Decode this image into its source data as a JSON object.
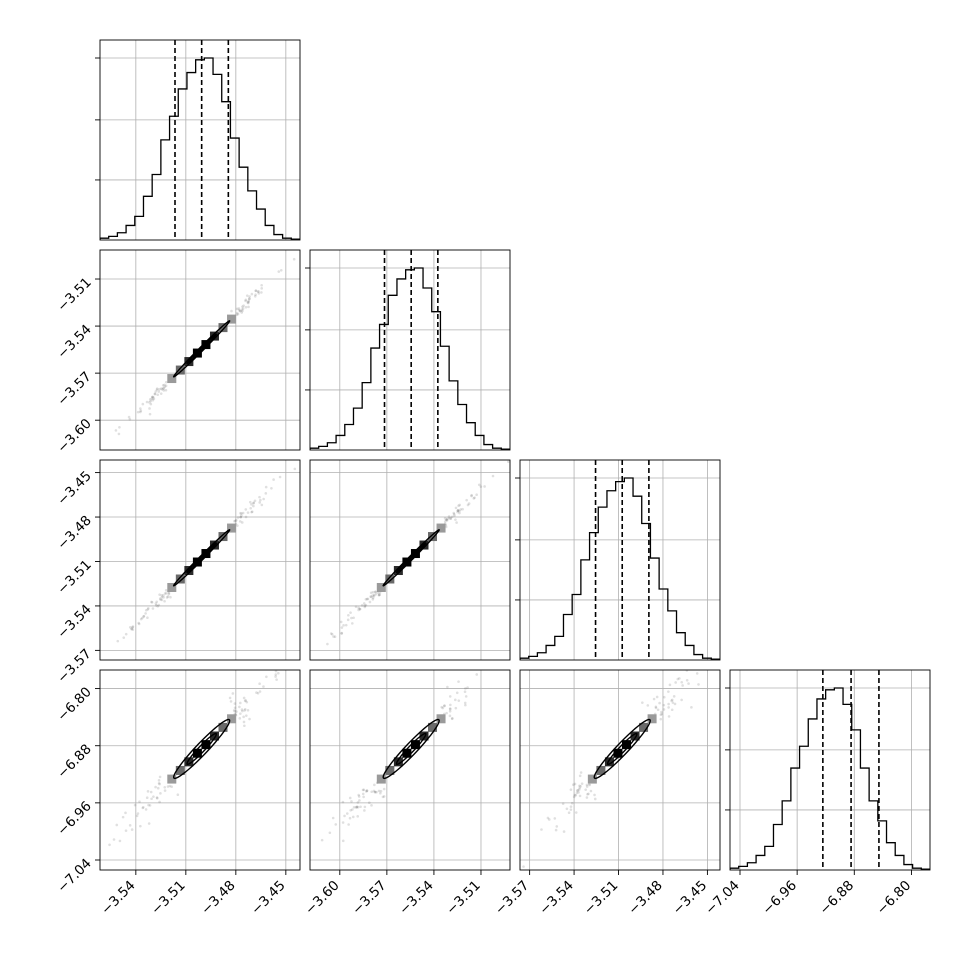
{
  "chart_data": {
    "type": "corner",
    "grid": true,
    "parameters": [
      {
        "range": [
          -3.5615,
          -3.4415
        ],
        "ticks": [
          -3.54,
          -3.51,
          -3.48,
          -3.45
        ],
        "tick_labels": [
          "−3.54",
          "−3.51",
          "−3.48",
          "−3.45"
        ],
        "quantiles": [
          -3.5165,
          -3.5005,
          -3.4845
        ],
        "hist": [
          0.01,
          0.02,
          0.04,
          0.08,
          0.13,
          0.24,
          0.36,
          0.55,
          0.68,
          0.83,
          0.92,
          0.99,
          1.0,
          0.91,
          0.76,
          0.56,
          0.4,
          0.27,
          0.17,
          0.08,
          0.03,
          0.01,
          0.005
        ]
      },
      {
        "range": [
          -3.619,
          -3.4915
        ],
        "ticks": [
          -3.6,
          -3.57,
          -3.54,
          -3.51
        ],
        "tick_labels": [
          "−3.60",
          "−3.57",
          "−3.54",
          "−3.51"
        ],
        "quantiles": [
          -3.5715,
          -3.5545,
          -3.5375
        ],
        "hist": [
          0.01,
          0.02,
          0.04,
          0.08,
          0.14,
          0.23,
          0.37,
          0.56,
          0.69,
          0.85,
          0.94,
          0.99,
          1.0,
          0.89,
          0.76,
          0.57,
          0.38,
          0.25,
          0.15,
          0.08,
          0.03,
          0.01,
          0.005
        ]
      },
      {
        "range": [
          -3.5765,
          -3.4415
        ],
        "ticks": [
          -3.57,
          -3.54,
          -3.51,
          -3.48,
          -3.45
        ],
        "tick_labels": [
          "−3.57",
          "−3.54",
          "−3.51",
          "−3.48",
          "−3.45"
        ],
        "quantiles": [
          -3.5255,
          -3.5075,
          -3.4895
        ],
        "hist": [
          0.01,
          0.02,
          0.04,
          0.08,
          0.13,
          0.25,
          0.36,
          0.55,
          0.7,
          0.84,
          0.93,
          0.98,
          1.0,
          0.9,
          0.75,
          0.56,
          0.39,
          0.27,
          0.15,
          0.08,
          0.03,
          0.01,
          0.005
        ]
      },
      {
        "range": [
          -7.054,
          -6.774
        ],
        "ticks": [
          -7.04,
          -6.96,
          -6.88,
          -6.8
        ],
        "tick_labels": [
          "−7.04",
          "−6.96",
          "−6.88",
          "−6.80"
        ],
        "quantiles": [
          -6.924,
          -6.8845,
          -6.8455
        ],
        "hist": [
          0.01,
          0.02,
          0.04,
          0.08,
          0.13,
          0.25,
          0.38,
          0.56,
          0.68,
          0.83,
          0.94,
          0.99,
          1.0,
          0.91,
          0.77,
          0.56,
          0.38,
          0.27,
          0.15,
          0.08,
          0.03,
          0.01,
          0.005
        ]
      }
    ],
    "colors": {
      "line": "#000000",
      "grid": "#b0b0b0",
      "points": "#555555"
    }
  }
}
